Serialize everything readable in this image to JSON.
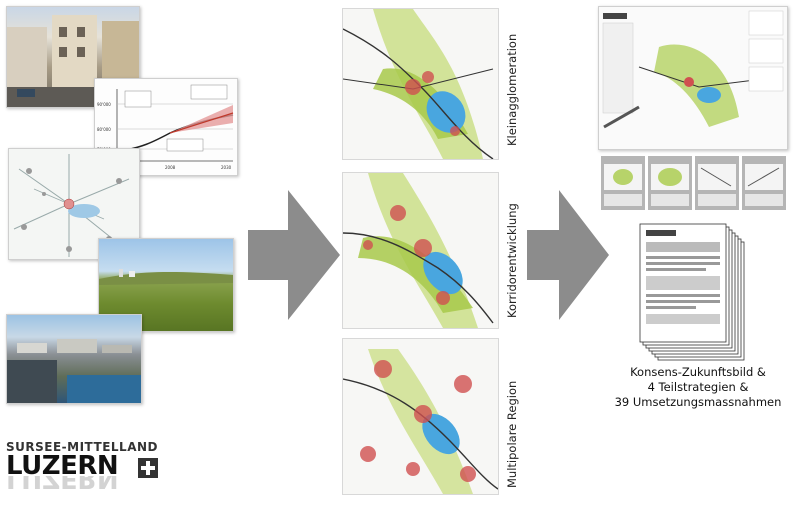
{
  "scenarios": [
    {
      "label": "Kleinagglomeration"
    },
    {
      "label": "Korridorentwicklung"
    },
    {
      "label": "Multipolare Region"
    }
  ],
  "result": {
    "lines": [
      "Konsens-Zukunftsbild &",
      "4 Teilstrategien &",
      "39 Umsetzungsmassnahmen"
    ]
  },
  "logo": {
    "line1": "SURSEE-MITTELLAND",
    "line2": "LUZERN"
  },
  "chart_thumb": {
    "x_ticks": [
      "1990",
      "2008",
      "2030"
    ],
    "y_ticks": [
      "90'000",
      "80'000",
      "70'000"
    ]
  },
  "colors": {
    "arrow": "#8c8c8c",
    "map_green": "#a8c94a",
    "lake": "#49a6df",
    "node_red": "#c0392b"
  }
}
